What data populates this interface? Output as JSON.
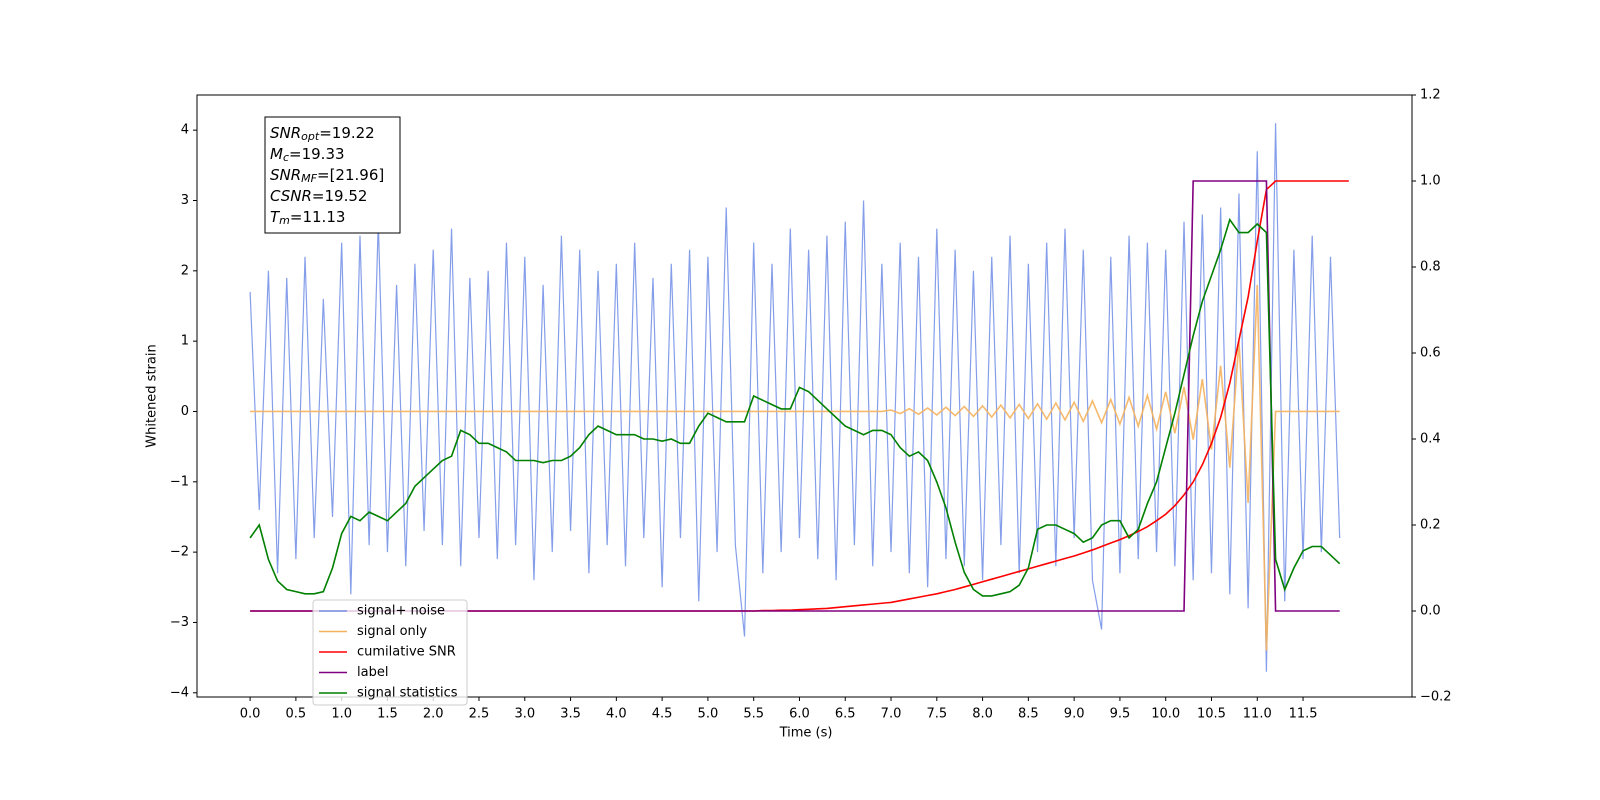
{
  "chart_data": {
    "type": "line",
    "xlabel": "Time (s)",
    "ylabel": "Whitened strain",
    "annotation": [
      {
        "main": "SNR",
        "sub": "opt",
        "rest": "=19.22"
      },
      {
        "main": "M",
        "sub": "c",
        "rest": "=19.33"
      },
      {
        "main": "SNR",
        "sub": "MF",
        "rest": "=[21.96]"
      },
      {
        "main": "CSNR",
        "rest": "=19.52"
      },
      {
        "main": "T",
        "sub": "m",
        "rest": "=11.13"
      }
    ],
    "legend": "lower left",
    "xlim": [
      -0.58,
      12.69
    ],
    "ylim": [
      -4.06,
      4.5
    ],
    "y2lim": [
      -0.2,
      1.2
    ],
    "xticks": [
      {
        "value": 0,
        "label": "0.0"
      },
      {
        "value": 0.5,
        "label": "0.5"
      },
      {
        "value": 1,
        "label": "1.0"
      },
      {
        "value": 1.5,
        "label": "1.5"
      },
      {
        "value": 2,
        "label": "2.0"
      },
      {
        "value": 2.5,
        "label": "2.5"
      },
      {
        "value": 3,
        "label": "3.0"
      },
      {
        "value": 3.5,
        "label": "3.5"
      },
      {
        "value": 4,
        "label": "4.0"
      },
      {
        "value": 4.5,
        "label": "4.5"
      },
      {
        "value": 5,
        "label": "5.0"
      },
      {
        "value": 5.5,
        "label": "5.5"
      },
      {
        "value": 6,
        "label": "6.0"
      },
      {
        "value": 6.5,
        "label": "6.5"
      },
      {
        "value": 7,
        "label": "7.0"
      },
      {
        "value": 7.5,
        "label": "7.5"
      },
      {
        "value": 8,
        "label": "8.0"
      },
      {
        "value": 8.5,
        "label": "8.5"
      },
      {
        "value": 9,
        "label": "9.0"
      },
      {
        "value": 9.5,
        "label": "9.5"
      },
      {
        "value": 10,
        "label": "10.0"
      },
      {
        "value": 10.5,
        "label": "10.5"
      },
      {
        "value": 11,
        "label": "11.0"
      },
      {
        "value": 11.5,
        "label": "11.5"
      }
    ],
    "yticks": [
      {
        "value": -4,
        "label": "−4"
      },
      {
        "value": -3,
        "label": "−3"
      },
      {
        "value": -2,
        "label": "−2"
      },
      {
        "value": -1,
        "label": "−1"
      },
      0,
      1,
      2,
      3,
      4
    ],
    "y2ticks": [
      {
        "value": -0.2,
        "label": "−0.2"
      },
      {
        "value": 0,
        "label": "0.0"
      },
      {
        "value": 0.2,
        "label": "0.2"
      },
      {
        "value": 0.4,
        "label": "0.4"
      },
      {
        "value": 0.6,
        "label": "0.6"
      },
      {
        "value": 0.8,
        "label": "0.8"
      },
      {
        "value": 1,
        "label": "1.0"
      },
      {
        "value": 1.2,
        "label": "1.2"
      }
    ],
    "x": [
      0,
      0.1,
      0.2,
      0.3,
      0.4,
      0.5,
      0.6,
      0.7,
      0.8,
      0.9,
      1,
      1.1,
      1.2,
      1.3,
      1.4,
      1.5,
      1.6,
      1.7,
      1.8,
      1.9,
      2,
      2.1,
      2.2,
      2.3,
      2.4,
      2.5,
      2.6,
      2.7,
      2.8,
      2.9,
      3,
      3.1,
      3.2,
      3.3,
      3.4,
      3.5,
      3.6,
      3.7,
      3.8,
      3.9,
      4,
      4.1,
      4.2,
      4.3,
      4.4,
      4.5,
      4.6,
      4.7,
      4.8,
      4.9,
      5,
      5.1,
      5.2,
      5.3,
      5.4,
      5.5,
      5.6,
      5.7,
      5.8,
      5.9,
      6,
      6.1,
      6.2,
      6.3,
      6.4,
      6.5,
      6.6,
      6.7,
      6.8,
      6.9,
      7,
      7.1,
      7.2,
      7.3,
      7.4,
      7.5,
      7.6,
      7.7,
      7.8,
      7.9,
      8,
      8.1,
      8.2,
      8.3,
      8.4,
      8.5,
      8.6,
      8.7,
      8.8,
      8.9,
      9,
      9.1,
      9.2,
      9.3,
      9.4,
      9.5,
      9.6,
      9.7,
      9.8,
      9.9,
      10,
      10.1,
      10.2,
      10.3,
      10.4,
      10.5,
      10.6,
      10.7,
      10.8,
      10.9,
      11,
      11.1,
      11.2,
      11.3,
      11.4,
      11.5,
      11.6,
      11.7,
      11.8,
      11.9,
      12
    ],
    "series": [
      {
        "name": "signal+ noise",
        "color": "#7893e8",
        "values": [
          1.7,
          -1.4,
          2.0,
          -2.3,
          1.9,
          -2.1,
          2.2,
          -1.8,
          1.6,
          -1.5,
          2.4,
          -2.6,
          2.5,
          -1.9,
          2.7,
          -2.0,
          1.8,
          -2.2,
          2.1,
          -1.7,
          2.3,
          -1.9,
          2.6,
          -2.2,
          1.9,
          -1.8,
          2.0,
          -2.1,
          2.4,
          -1.9,
          2.2,
          -2.4,
          1.8,
          -2.0,
          2.5,
          -1.7,
          2.3,
          -2.3,
          2.0,
          -1.9,
          2.1,
          -2.2,
          2.4,
          -1.8,
          1.9,
          -2.5,
          2.1,
          -1.8,
          2.3,
          -2.7,
          2.2,
          -2.0,
          2.9,
          -1.9,
          -3.2,
          2.4,
          -2.3,
          2.1,
          -2.0,
          2.6,
          -1.8,
          2.3,
          -2.1,
          2.5,
          -2.4,
          2.7,
          -1.9,
          3.0,
          -2.2,
          2.1,
          -2.0,
          2.4,
          -2.3,
          2.2,
          -2.5,
          2.6,
          -2.1,
          2.3,
          -2.2,
          2.0,
          -2.4,
          2.2,
          -1.9,
          2.5,
          -2.3,
          2.1,
          -2.0,
          2.4,
          -2.2,
          2.6,
          -1.8,
          2.3,
          -2.4,
          -3.1,
          2.2,
          -2.3,
          2.5,
          -2.1,
          2.4,
          -2.0,
          2.3,
          -2.2,
          2.7,
          -2.4,
          2.8,
          -2.3,
          2.9,
          -2.6,
          3.1,
          -2.8,
          3.7,
          -3.7,
          4.1,
          -2.7,
          2.3,
          -2.1,
          2.5,
          -2.0,
          2.2,
          -1.8,
          null
        ]
      },
      {
        "name": "signal only",
        "color": "#f5b25e",
        "values": [
          0,
          0,
          0,
          0,
          0,
          0,
          0,
          0,
          0,
          0,
          0,
          0,
          0,
          0,
          0,
          0,
          0,
          0,
          0,
          0,
          0,
          0,
          0,
          0,
          0,
          0,
          0,
          0,
          0,
          0,
          0,
          0,
          0,
          0,
          0,
          0,
          0,
          0,
          0,
          0,
          0,
          0,
          0,
          0,
          0,
          0,
          0,
          0,
          0,
          0,
          0,
          0,
          0,
          0,
          0,
          0,
          0,
          0,
          0,
          0,
          0,
          0,
          0,
          0,
          0,
          0,
          0,
          0,
          0,
          0,
          0.02,
          -0.03,
          0.04,
          -0.04,
          0.05,
          -0.05,
          0.06,
          -0.06,
          0.07,
          -0.07,
          0.08,
          -0.08,
          0.09,
          -0.09,
          0.1,
          -0.1,
          0.11,
          -0.11,
          0.12,
          -0.12,
          0.13,
          -0.14,
          0.15,
          -0.16,
          0.17,
          -0.18,
          0.2,
          -0.21,
          0.23,
          -0.25,
          0.28,
          -0.31,
          0.35,
          -0.4,
          0.46,
          -0.54,
          0.65,
          -0.8,
          1.0,
          -1.3,
          1.8,
          -3.4,
          0,
          0,
          0,
          0,
          0,
          0,
          0,
          0,
          null
        ]
      },
      {
        "name": "cumilative SNR",
        "color": "#ff0000",
        "axis": "y2",
        "values": [
          0,
          0,
          0,
          0,
          0,
          0,
          0,
          0,
          0,
          0,
          0,
          0,
          0,
          0,
          0,
          0,
          0,
          0,
          0,
          0,
          0,
          0,
          0,
          0,
          0,
          0,
          0,
          0,
          0,
          0,
          0,
          0,
          0,
          0,
          0,
          0,
          0,
          0,
          0,
          0,
          0,
          0,
          0,
          0,
          0,
          0,
          0,
          0,
          0,
          0,
          0,
          0,
          0,
          0,
          0,
          0,
          0.001,
          0.001,
          0.002,
          0.002,
          0.003,
          0.004,
          0.005,
          0.006,
          0.008,
          0.01,
          0.012,
          0.014,
          0.016,
          0.018,
          0.02,
          0.024,
          0.028,
          0.032,
          0.036,
          0.04,
          0.045,
          0.05,
          0.056,
          0.062,
          0.068,
          0.074,
          0.08,
          0.086,
          0.092,
          0.098,
          0.104,
          0.11,
          0.116,
          0.122,
          0.128,
          0.135,
          0.142,
          0.15,
          0.158,
          0.166,
          0.175,
          0.185,
          0.196,
          0.21,
          0.225,
          0.245,
          0.27,
          0.3,
          0.34,
          0.39,
          0.45,
          0.53,
          0.63,
          0.73,
          0.86,
          0.98,
          1,
          1,
          1,
          1,
          1,
          1,
          1,
          1,
          1
        ]
      },
      {
        "name": "label",
        "color": "#800080",
        "axis": "y2",
        "values": [
          0,
          0,
          0,
          0,
          0,
          0,
          0,
          0,
          0,
          0,
          0,
          0,
          0,
          0,
          0,
          0,
          0,
          0,
          0,
          0,
          0,
          0,
          0,
          0,
          0,
          0,
          0,
          0,
          0,
          0,
          0,
          0,
          0,
          0,
          0,
          0,
          0,
          0,
          0,
          0,
          0,
          0,
          0,
          0,
          0,
          0,
          0,
          0,
          0,
          0,
          0,
          0,
          0,
          0,
          0,
          0,
          0,
          0,
          0,
          0,
          0,
          0,
          0,
          0,
          0,
          0,
          0,
          0,
          0,
          0,
          0,
          0,
          0,
          0,
          0,
          0,
          0,
          0,
          0,
          0,
          0,
          0,
          0,
          0,
          0,
          0,
          0,
          0,
          0,
          0,
          0,
          0,
          0,
          0,
          0,
          0,
          0,
          0,
          0,
          0,
          0,
          0,
          0,
          1,
          1,
          1,
          1,
          1,
          1,
          1,
          1,
          1,
          0,
          0,
          0,
          0,
          0,
          0,
          0,
          0,
          null
        ]
      },
      {
        "name": "signal statistics",
        "color": "#008000",
        "axis": "y2",
        "values": [
          0.17,
          0.2,
          0.12,
          0.07,
          0.05,
          0.045,
          0.04,
          0.04,
          0.045,
          0.1,
          0.18,
          0.22,
          0.21,
          0.23,
          0.22,
          0.21,
          0.23,
          0.25,
          0.29,
          0.31,
          0.33,
          0.35,
          0.36,
          0.42,
          0.41,
          0.39,
          0.39,
          0.38,
          0.37,
          0.35,
          0.35,
          0.35,
          0.345,
          0.35,
          0.35,
          0.36,
          0.38,
          0.41,
          0.43,
          0.42,
          0.41,
          0.41,
          0.41,
          0.4,
          0.4,
          0.395,
          0.4,
          0.39,
          0.39,
          0.43,
          0.46,
          0.45,
          0.44,
          0.44,
          0.44,
          0.5,
          0.49,
          0.48,
          0.47,
          0.47,
          0.52,
          0.51,
          0.49,
          0.47,
          0.45,
          0.43,
          0.42,
          0.41,
          0.42,
          0.42,
          0.41,
          0.38,
          0.36,
          0.37,
          0.35,
          0.3,
          0.24,
          0.16,
          0.09,
          0.05,
          0.035,
          0.035,
          0.04,
          0.045,
          0.06,
          0.1,
          0.19,
          0.2,
          0.2,
          0.19,
          0.18,
          0.16,
          0.17,
          0.2,
          0.21,
          0.21,
          0.17,
          0.19,
          0.25,
          0.3,
          0.38,
          0.46,
          0.55,
          0.64,
          0.72,
          0.78,
          0.84,
          0.91,
          0.88,
          0.88,
          0.9,
          0.88,
          0.12,
          0.05,
          0.1,
          0.14,
          0.15,
          0.15,
          0.13,
          0.11,
          null
        ]
      }
    ]
  }
}
